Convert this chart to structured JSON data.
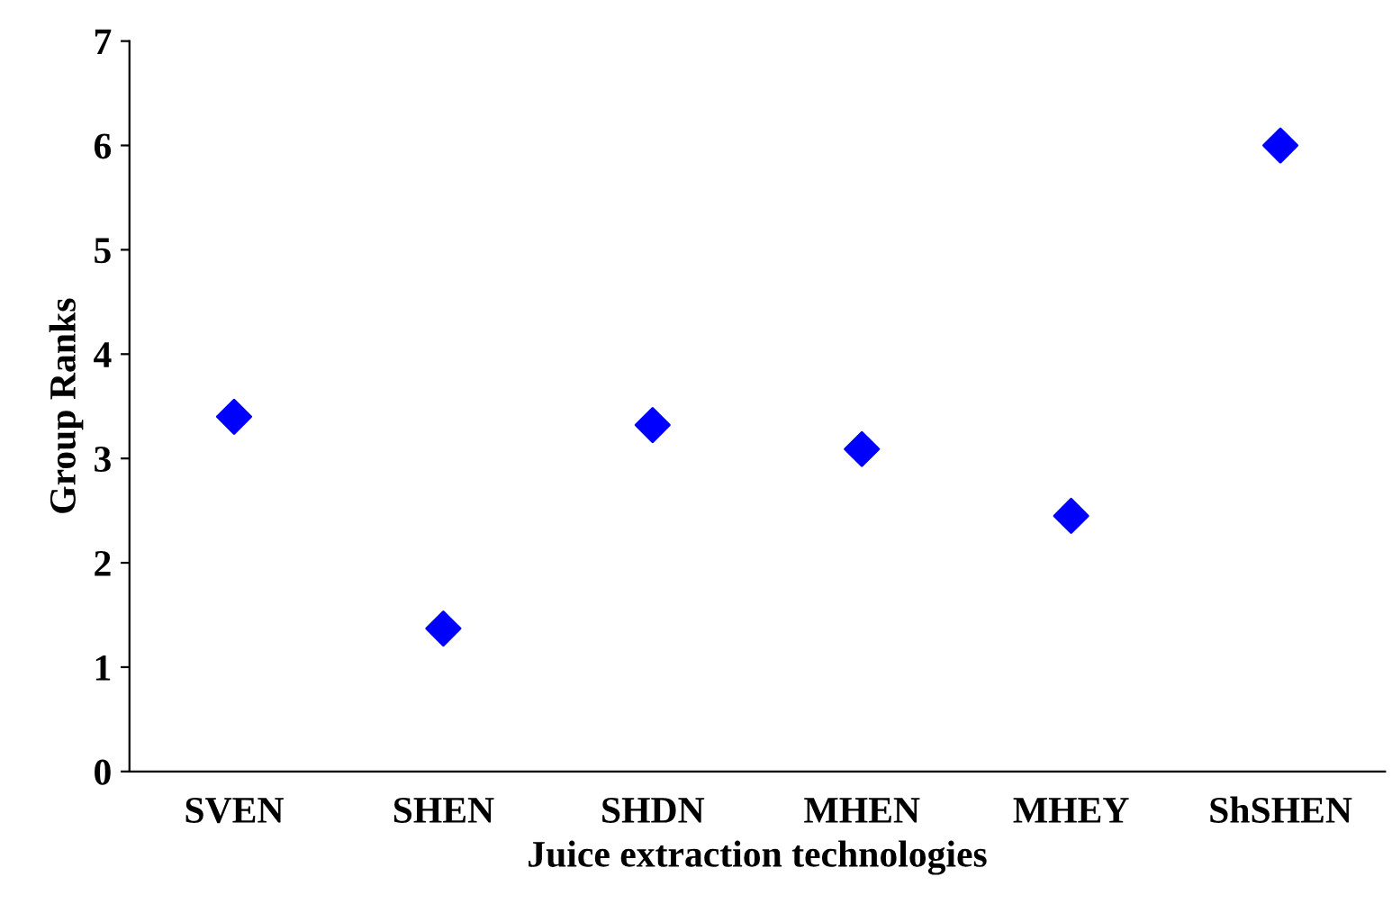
{
  "chart_data": {
    "type": "scatter",
    "xlabel": "Juice extraction technologies",
    "ylabel": "Group Ranks",
    "categories": [
      "SVEN",
      "SHEN",
      "SHDN",
      "MHEN",
      "MHEY",
      "ShSHEN"
    ],
    "series": [
      {
        "color": "#0000ff",
        "values": [
          3.4,
          1.37,
          3.32,
          3.09,
          2.45,
          6.0
        ]
      }
    ],
    "ylim": [
      0,
      7
    ],
    "yticks": [
      0,
      1,
      2,
      3,
      4,
      5,
      6,
      7
    ],
    "marker": "diamond",
    "grid": false,
    "legend": false
  }
}
